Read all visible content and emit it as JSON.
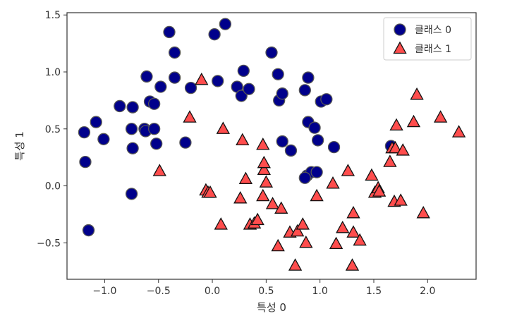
{
  "chart_data": {
    "type": "scatter",
    "xlabel": "특성 0",
    "ylabel": "특성 1",
    "xlim": [
      -1.35,
      2.45
    ],
    "ylim": [
      -0.82,
      1.52
    ],
    "xticks": [
      {
        "value": -1.0,
        "label": "−1.0"
      },
      {
        "value": -0.5,
        "label": "−0.5"
      },
      {
        "value": 0.0,
        "label": "0.0"
      },
      {
        "value": 0.5,
        "label": "0.5"
      },
      {
        "value": 1.0,
        "label": "1.0"
      },
      {
        "value": 1.5,
        "label": "1.5"
      },
      {
        "value": 2.0,
        "label": "2.0"
      }
    ],
    "yticks": [
      {
        "value": -0.5,
        "label": "−0.5"
      },
      {
        "value": 0.0,
        "label": "0.0"
      },
      {
        "value": 0.5,
        "label": "0.5"
      },
      {
        "value": 1.0,
        "label": "1.0"
      },
      {
        "value": 1.5,
        "label": "1.5"
      }
    ],
    "grid": false,
    "legend_position": "top-right",
    "series": [
      {
        "name": "클래스 0",
        "marker": "circle",
        "color": "#00008b",
        "edge_color": "#555555",
        "points": [
          [
            -1.19,
            0.47
          ],
          [
            -1.18,
            0.21
          ],
          [
            -1.15,
            -0.39
          ],
          [
            -1.08,
            0.56
          ],
          [
            -1.01,
            0.41
          ],
          [
            -0.86,
            0.7
          ],
          [
            -0.74,
            0.69
          ],
          [
            -0.75,
            0.5
          ],
          [
            -0.74,
            0.33
          ],
          [
            -0.75,
            -0.07
          ],
          [
            -0.63,
            0.5
          ],
          [
            -0.62,
            0.48
          ],
          [
            -0.54,
            0.5
          ],
          [
            -0.52,
            0.37
          ],
          [
            -0.58,
            0.74
          ],
          [
            -0.54,
            0.72
          ],
          [
            -0.61,
            0.96
          ],
          [
            -0.48,
            0.87
          ],
          [
            -0.4,
            1.35
          ],
          [
            -0.35,
            1.17
          ],
          [
            -0.35,
            0.95
          ],
          [
            -0.25,
            0.38
          ],
          [
            -0.2,
            0.86
          ],
          [
            0.02,
            1.33
          ],
          [
            0.12,
            1.42
          ],
          [
            0.05,
            0.92
          ],
          [
            0.23,
            0.87
          ],
          [
            0.27,
            0.79
          ],
          [
            0.29,
            1.01
          ],
          [
            0.34,
            0.85
          ],
          [
            0.55,
            1.17
          ],
          [
            0.61,
            0.98
          ],
          [
            0.62,
            0.75
          ],
          [
            0.65,
            0.81
          ],
          [
            0.65,
            0.39
          ],
          [
            0.73,
            0.31
          ],
          [
            0.86,
            0.84
          ],
          [
            0.89,
            0.95
          ],
          [
            0.89,
            0.56
          ],
          [
            0.95,
            0.51
          ],
          [
            0.98,
            0.4
          ],
          [
            1.01,
            0.74
          ],
          [
            1.06,
            0.76
          ],
          [
            1.13,
            0.34
          ],
          [
            0.88,
            0.09
          ],
          [
            0.92,
            0.12
          ],
          [
            0.97,
            0.12
          ],
          [
            1.66,
            0.35
          ],
          [
            0.86,
            0.07
          ]
        ]
      },
      {
        "name": "클래스 1",
        "marker": "triangle",
        "color": "#ff4d4d",
        "edge_color": "#111111",
        "points": [
          [
            -0.49,
            0.13
          ],
          [
            -0.21,
            0.6
          ],
          [
            -0.1,
            0.93
          ],
          [
            -0.06,
            -0.04
          ],
          [
            -0.04,
            -0.06
          ],
          [
            -0.02,
            -0.06
          ],
          [
            0.08,
            -0.34
          ],
          [
            0.1,
            0.5
          ],
          [
            0.26,
            -0.11
          ],
          [
            0.28,
            0.4
          ],
          [
            0.31,
            0.06
          ],
          [
            0.35,
            -0.34
          ],
          [
            0.39,
            -0.33
          ],
          [
            0.42,
            -0.3
          ],
          [
            0.47,
            -0.09
          ],
          [
            0.47,
            0.36
          ],
          [
            0.48,
            0.14
          ],
          [
            0.48,
            0.2
          ],
          [
            0.5,
            0.03
          ],
          [
            0.56,
            -0.16
          ],
          [
            0.61,
            -0.53
          ],
          [
            0.64,
            -0.2
          ],
          [
            0.72,
            -0.41
          ],
          [
            0.77,
            -0.7
          ],
          [
            0.79,
            -0.4
          ],
          [
            0.84,
            -0.34
          ],
          [
            0.87,
            -0.5
          ],
          [
            0.97,
            -0.09
          ],
          [
            1.12,
            0.02
          ],
          [
            1.15,
            -0.51
          ],
          [
            1.21,
            -0.37
          ],
          [
            1.26,
            0.13
          ],
          [
            1.3,
            -0.7
          ],
          [
            1.31,
            -0.24
          ],
          [
            1.31,
            -0.41
          ],
          [
            1.37,
            -0.48
          ],
          [
            1.48,
            0.09
          ],
          [
            1.51,
            -0.06
          ],
          [
            1.54,
            -0.02
          ],
          [
            1.55,
            -0.05
          ],
          [
            1.65,
            0.21
          ],
          [
            1.67,
            0.33
          ],
          [
            1.69,
            -0.14
          ],
          [
            1.7,
            0.33
          ],
          [
            1.71,
            0.53
          ],
          [
            1.75,
            -0.13
          ],
          [
            1.77,
            0.31
          ],
          [
            1.87,
            0.56
          ],
          [
            1.9,
            0.8
          ],
          [
            1.96,
            -0.24
          ],
          [
            2.12,
            0.6
          ],
          [
            2.29,
            0.47
          ]
        ]
      }
    ]
  }
}
